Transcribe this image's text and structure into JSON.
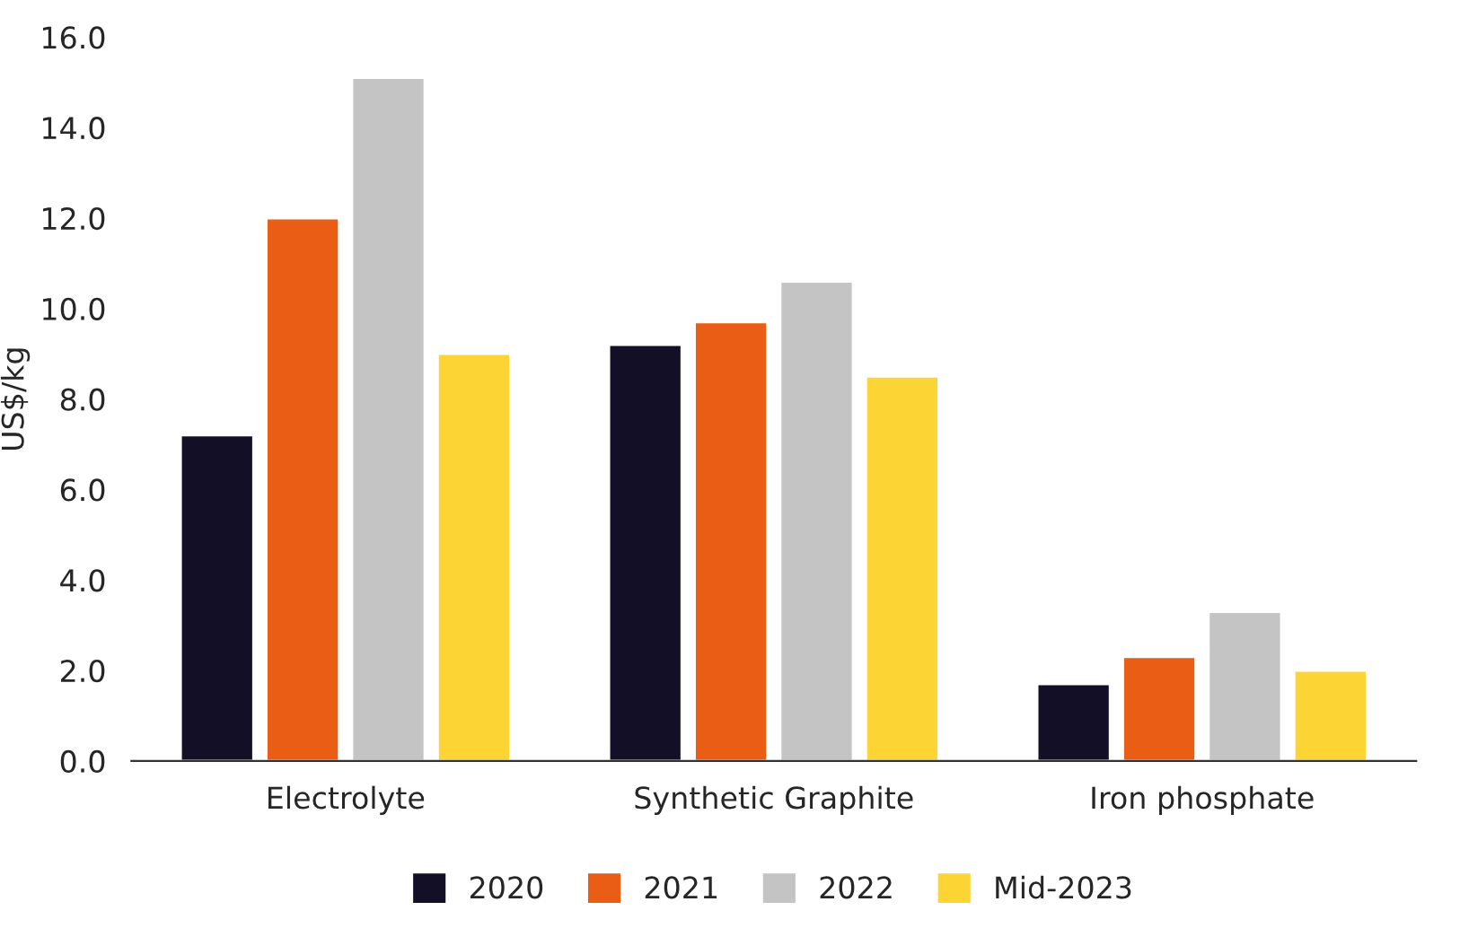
{
  "chart_data": {
    "type": "bar",
    "ylabel": "US$/kg",
    "categories": [
      "Electrolyte",
      "Synthetic Graphite",
      "Iron phosphate"
    ],
    "series": [
      {
        "name": "2020",
        "color": "#120f26",
        "values": [
          7.2,
          9.2,
          1.7
        ]
      },
      {
        "name": "2021",
        "color": "#e95d14",
        "values": [
          12.0,
          9.7,
          2.3
        ]
      },
      {
        "name": "2022",
        "color": "#c4c4c4",
        "values": [
          15.1,
          10.6,
          3.3
        ]
      },
      {
        "name": "Mid-2023",
        "color": "#fcd535",
        "values": [
          9.0,
          8.5,
          2.0
        ]
      }
    ],
    "ylim": [
      0,
      16
    ],
    "yticks": [
      {
        "value": 0,
        "label": "0.0"
      },
      {
        "value": 2,
        "label": "2.0"
      },
      {
        "value": 4,
        "label": "4.0"
      },
      {
        "value": 6,
        "label": "6.0"
      },
      {
        "value": 8,
        "label": "8.0"
      },
      {
        "value": 10,
        "label": "10.0"
      },
      {
        "value": 12,
        "label": "12.0"
      },
      {
        "value": 14,
        "label": "14.0"
      },
      {
        "value": 16,
        "label": "16.0"
      }
    ],
    "grid": false,
    "legend": "bottom"
  }
}
